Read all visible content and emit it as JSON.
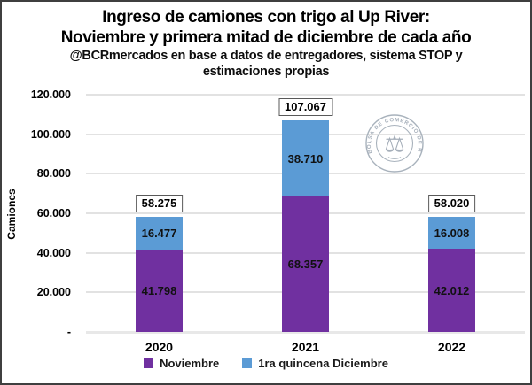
{
  "title": {
    "line1": "Ingreso de camiones con trigo al Up River:",
    "line2": "Noviembre y primera mitad de diciembre de cada año"
  },
  "subtitle": {
    "line1": "@BCRmercados en base a datos de entregadores, sistema STOP y",
    "line2": "estimaciones propias"
  },
  "watermark": {
    "ring_text": "BOLSA DE COMERCIO DE ROSARIO",
    "icon": "scales-caduceus",
    "color": "#97a2af"
  },
  "colors": {
    "noviembre": "#7030A0",
    "diciembre": "#5B9BD5",
    "gridline": "#e2e2e2",
    "frame_border": "#3f3f3f"
  },
  "chart_data": {
    "type": "bar",
    "stacked": true,
    "title": "Ingreso de camiones con trigo al Up River: Noviembre y primera mitad de diciembre de cada año",
    "xlabel": "",
    "ylabel": "Camiones",
    "ylim": [
      0,
      120000
    ],
    "grid": true,
    "legend_position": "bottom",
    "categories": [
      "2020",
      "2021",
      "2022"
    ],
    "series": [
      {
        "name": "Noviembre",
        "color": "#7030A0",
        "values": [
          41798,
          68357,
          42012
        ],
        "labels": [
          "41.798",
          "68.357",
          "42.012"
        ]
      },
      {
        "name": "1ra quincena Diciembre",
        "color": "#5B9BD5",
        "values": [
          16477,
          38710,
          16008
        ],
        "labels": [
          "16.477",
          "38.710",
          "16.008"
        ]
      }
    ],
    "totals": [
      58275,
      107067,
      58020
    ],
    "total_labels": [
      "58.275",
      "107.067",
      "58.020"
    ],
    "ytick_values": [
      0,
      20000,
      40000,
      60000,
      80000,
      100000,
      120000
    ],
    "ytick_labels": [
      "-",
      "20.000",
      "40.000",
      "60.000",
      "80.000",
      "100.000",
      "120.000"
    ]
  }
}
